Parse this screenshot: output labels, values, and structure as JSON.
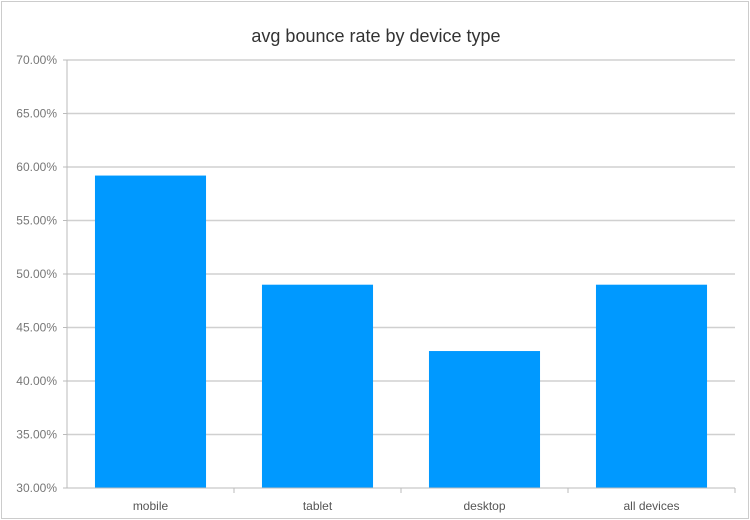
{
  "chart_data": {
    "type": "bar",
    "title": "avg bounce rate by device type",
    "xlabel": "",
    "ylabel": "",
    "categories": [
      "mobile",
      "tablet",
      "desktop",
      "all devices"
    ],
    "values": [
      59.2,
      49.0,
      42.8,
      49.0
    ],
    "ylim": [
      30,
      70
    ],
    "yticks": [
      "30.00%",
      "35.00%",
      "40.00%",
      "45.00%",
      "50.00%",
      "55.00%",
      "60.00%",
      "65.00%",
      "70.00%"
    ],
    "grid": true,
    "legend": "none",
    "bar_color": "#0099ff"
  }
}
